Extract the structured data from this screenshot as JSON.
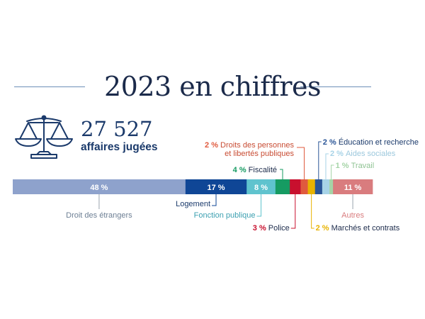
{
  "header": {
    "title": "2023 en chiffres",
    "kpi_number": "27 527",
    "kpi_label": "affaires jugées"
  },
  "icons": {
    "scale": "scale-of-justice-icon"
  },
  "chart_data": {
    "type": "bar",
    "orientation": "horizontal-stacked",
    "unit": "%",
    "segments": [
      {
        "name": "Droit des étrangers",
        "value": 48,
        "color": "#8ea2cc",
        "label_text": "48 %",
        "label_color": "#ffffff"
      },
      {
        "name": "Logement",
        "value": 17,
        "color": "#0f4696",
        "label_text": "17 %",
        "label_color": "#ffffff"
      },
      {
        "name": "Fonction publique",
        "value": 8,
        "color": "#5fc3ce",
        "label_text": "8 %",
        "label_color": "#ffffff"
      },
      {
        "name": "Fiscalité",
        "value": 4,
        "color": "#169b62",
        "label_text": "",
        "label_color": "#ffffff"
      },
      {
        "name": "Police",
        "value": 3,
        "color": "#c8102e",
        "label_text": "",
        "label_color": "#ffffff"
      },
      {
        "name": "Droits des personnes et libertés publiques",
        "value": 2,
        "color": "#e05a3e",
        "label_text": "",
        "label_color": "#ffffff"
      },
      {
        "name": "Marchés et contrats",
        "value": 2,
        "color": "#e8b300",
        "label_text": "",
        "label_color": "#ffffff"
      },
      {
        "name": "Éducation et recherche",
        "value": 2,
        "color": "#2a5597",
        "label_text": "",
        "label_color": "#ffffff"
      },
      {
        "name": "Aides sociales",
        "value": 2,
        "color": "#a7d3e7",
        "label_text": "",
        "label_color": "#ffffff"
      },
      {
        "name": "Travail",
        "value": 1,
        "color": "#a5d4a7",
        "label_text": "",
        "label_color": "#ffffff"
      },
      {
        "name": "Autres",
        "value": 11,
        "color": "#d97c7e",
        "label_text": "11 %",
        "label_color": "#ffffff"
      }
    ],
    "annotations": [
      {
        "segment": 0,
        "pct": "",
        "text": "Droit des étrangers"
      },
      {
        "segment": 1,
        "pct": "",
        "text": "Logement"
      },
      {
        "segment": 2,
        "pct": "",
        "text": "Fonction publique"
      },
      {
        "segment": 3,
        "pct": "4 %",
        "text": "Fiscalité"
      },
      {
        "segment": 4,
        "pct": "3 %",
        "text": "Police"
      },
      {
        "segment": 5,
        "pct": "2 %",
        "text": "Droits des personnes",
        "text2": "et libertés publiques"
      },
      {
        "segment": 6,
        "pct": "2 %",
        "text": "Marchés et contrats"
      },
      {
        "segment": 7,
        "pct": "2 %",
        "text": "Éducation et recherche"
      },
      {
        "segment": 8,
        "pct": "2 %",
        "text": "Aides sociales"
      },
      {
        "segment": 9,
        "pct": "1 %",
        "text": "Travail"
      },
      {
        "segment": 10,
        "pct": "",
        "text": "Autres"
      }
    ]
  }
}
